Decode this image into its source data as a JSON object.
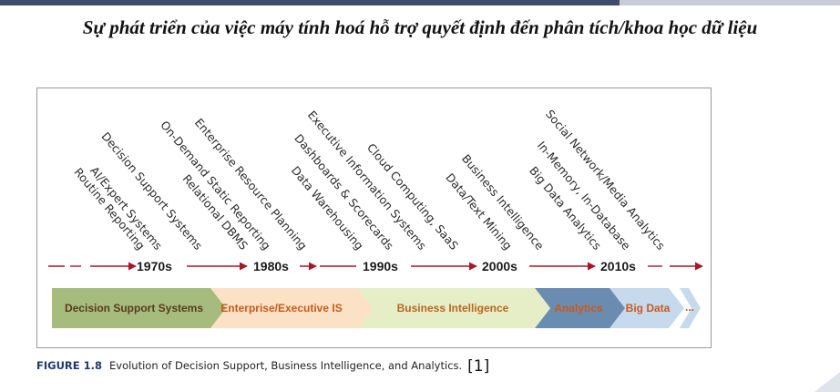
{
  "title": "Sự phát triển của việc máy tính hoá hỗ trợ quyết định đến phân tích/khoa học dữ liệu",
  "diagram": {
    "technologies": [
      "Routine Reporting",
      "AI/Expert Systems",
      "Decision Support Systems",
      "On-Demand Static Reporting",
      "Relational DBMS",
      "Enterprise Resource Planning",
      "Data Warehousing",
      "Dashboards & Scorecards",
      "Executive Information Systems",
      "Cloud Computing, SaaS",
      "Data/Text Mining",
      "Business Intelligence",
      "Big Data Analytics",
      "In-Memory, In-Database",
      "Social Network/Media Analytics"
    ],
    "decades": [
      "1970s",
      "1980s",
      "1990s",
      "2000s",
      "2010s"
    ],
    "eras": [
      {
        "label": "Decision Support Systems",
        "fill": "#a6bc7e",
        "text_color": "#5a3a1a"
      },
      {
        "label": "Enterprise/Executive IS",
        "fill": "#fbe2c6",
        "text_color": "#c85a1a"
      },
      {
        "label": "Business Intelligence",
        "fill": "#e6eec8",
        "text_color": "#b8661e"
      },
      {
        "label": "Analytics",
        "fill": "#6a8cb0",
        "text_color": "#c85a1a"
      },
      {
        "label": "Big Data",
        "fill": "#c7d9ec",
        "text_color": "#c85a1a"
      },
      {
        "label": "...",
        "fill": "#c7d9ec",
        "text_color": "#c85a1a"
      }
    ],
    "timeline_color": "#a8142a"
  },
  "caption": {
    "figure_label": "FIGURE 1.8",
    "text": "Evolution of Decision Support, Business Intelligence, and Analytics.",
    "reference": "[1]"
  }
}
